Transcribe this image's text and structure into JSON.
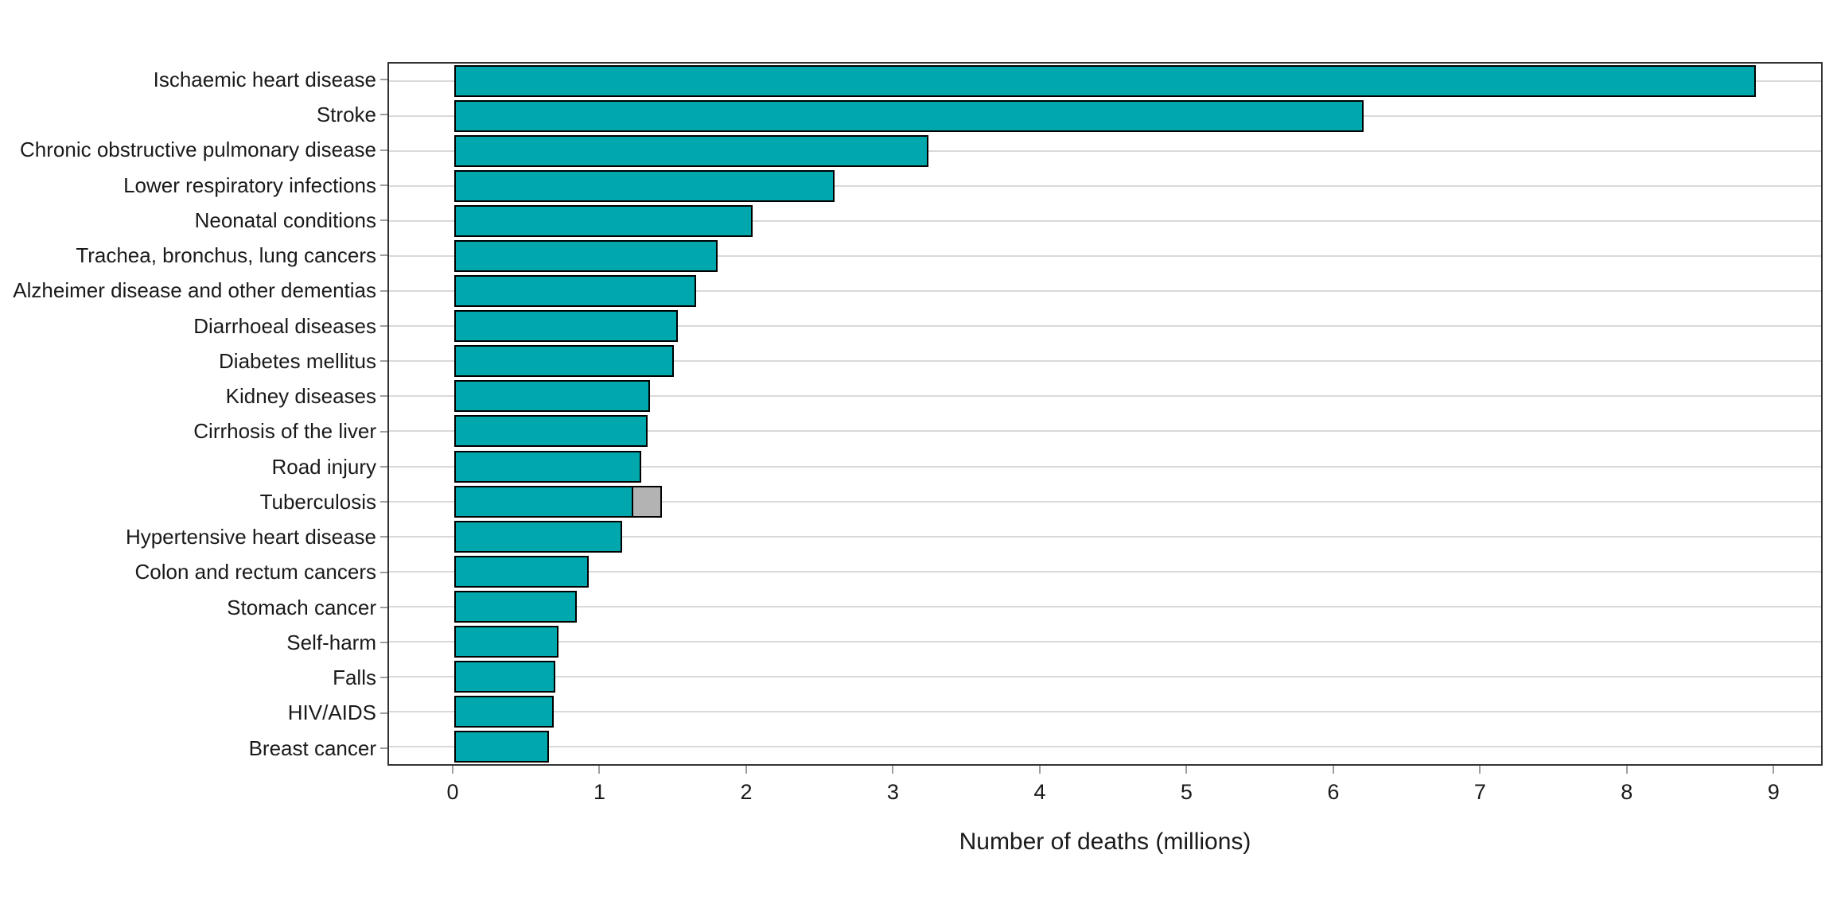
{
  "chart_data": {
    "type": "bar",
    "orientation": "horizontal",
    "title": "",
    "xlabel": "Number of deaths (millions)",
    "ylabel": "",
    "xlim": [
      0,
      9
    ],
    "x_ticks": [
      "0",
      "1",
      "2",
      "3",
      "4",
      "5",
      "6",
      "7",
      "8",
      "9"
    ],
    "axis_expansion_fraction": 0.05,
    "grid": "horizontal-only",
    "legend": "none",
    "bars": [
      {
        "label": "Ischaemic heart disease",
        "value": 8.89
      },
      {
        "label": "Stroke",
        "value": 6.21
      },
      {
        "label": "Chronic obstructive pulmonary disease",
        "value": 3.24
      },
      {
        "label": "Lower respiratory infections",
        "value": 2.6
      },
      {
        "label": "Neonatal conditions",
        "value": 2.04
      },
      {
        "label": "Trachea, bronchus, lung cancers",
        "value": 1.8
      },
      {
        "label": "Alzheimer disease and other dementias",
        "value": 1.65
      },
      {
        "label": "Diarrhoeal diseases",
        "value": 1.53
      },
      {
        "label": "Diabetes mellitus",
        "value": 1.5
      },
      {
        "label": "Kidney diseases",
        "value": 1.34
      },
      {
        "label": "Cirrhosis of the liver",
        "value": 1.32
      },
      {
        "label": "Road injury",
        "value": 1.28
      },
      {
        "label": "Tuberculosis",
        "value": 1.21,
        "secondary_value": 0.21
      },
      {
        "label": "Hypertensive heart disease",
        "value": 1.15
      },
      {
        "label": "Colon and rectum cancers",
        "value": 0.92
      },
      {
        "label": "Stomach cancer",
        "value": 0.84
      },
      {
        "label": "Self-harm",
        "value": 0.71
      },
      {
        "label": "Falls",
        "value": 0.69
      },
      {
        "label": "HIV/AIDS",
        "value": 0.68
      },
      {
        "label": "Breast cancer",
        "value": 0.65
      }
    ],
    "colors": {
      "bar_fill": "#00a8ad",
      "bar_fill_secondary": "#b3b3b3",
      "bar_outline": "#000000",
      "gridline": "#d9d9d9",
      "panel_border": "#333333",
      "tick_mark": "#9e9e9e",
      "text": "#1a1a1a",
      "background": "#ffffff"
    }
  }
}
